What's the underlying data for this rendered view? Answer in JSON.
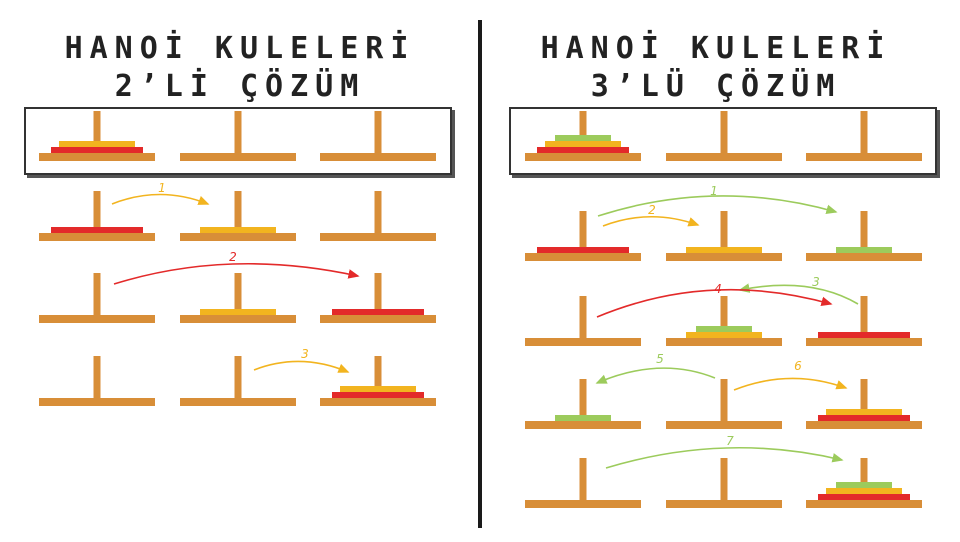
{
  "left": {
    "title_line1": "HANOİ KULELERİ",
    "title_line2": "2’Lİ ÇÖZÜM",
    "steps": [
      "1",
      "2",
      "3"
    ]
  },
  "right": {
    "title_line1": "HANOİ KULELERİ",
    "title_line2": "3’LÜ ÇÖZÜM",
    "steps": [
      "1",
      "2",
      "3",
      "4",
      "5",
      "6",
      "7"
    ]
  },
  "colors": {
    "peg": "#D88E38",
    "large_disk": "#E32A2A",
    "medium_disk": "#F2B41F",
    "small_disk": "#9CCB5C",
    "divider": "#1a1a1a"
  }
}
